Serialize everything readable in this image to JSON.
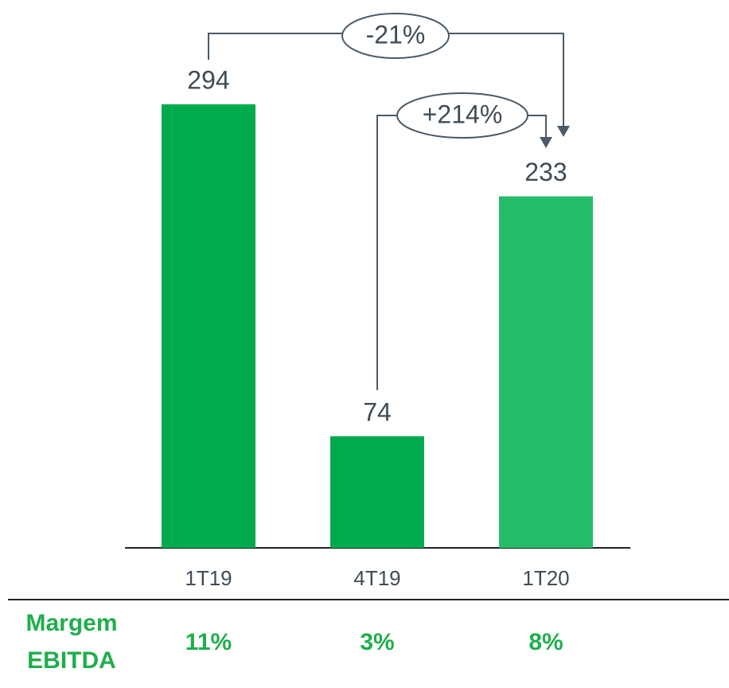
{
  "chart_data": {
    "type": "bar",
    "categories": [
      "1T19",
      "4T19",
      "1T20"
    ],
    "values": [
      294,
      74,
      233
    ],
    "colors": [
      "#00ab4e",
      "#00ab4e",
      "#25bd69"
    ],
    "annotations": [
      {
        "text": "-21%"
      },
      {
        "text": "+214%"
      }
    ],
    "margin": {
      "label": [
        "Margem",
        "EBITDA"
      ],
      "values": [
        "11%",
        "3%",
        "8%"
      ]
    }
  }
}
